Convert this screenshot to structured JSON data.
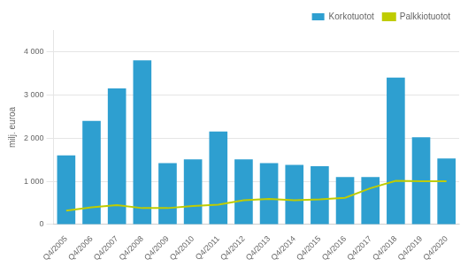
{
  "chart_data": {
    "type": "bar",
    "ylabel": "milj. euroa",
    "categories": [
      "Q4/2005",
      "Q4/2006",
      "Q4/2007",
      "Q4/2008",
      "Q4/2009",
      "Q4/2010",
      "Q4/2011",
      "Q4/2012",
      "Q4/2013",
      "Q4/2014",
      "Q4/2015",
      "Q4/2016",
      "Q4/2017",
      "Q4/2018",
      "Q4/2019",
      "Q4/2020"
    ],
    "series": [
      {
        "name": "Korkotuotot",
        "type": "bar",
        "color": "#2E9FD0",
        "values": [
          1600,
          2400,
          3150,
          3800,
          1420,
          1510,
          2150,
          1510,
          1420,
          1380,
          1350,
          1100,
          1100,
          3400,
          2020,
          1530
        ]
      },
      {
        "name": "Palkkiotuotot",
        "type": "line",
        "color": "#BFCC00",
        "values": [
          320,
          400,
          450,
          380,
          380,
          430,
          460,
          560,
          590,
          560,
          580,
          620,
          840,
          1010,
          1000,
          1000
        ]
      }
    ],
    "ylim": [
      0,
      4500
    ],
    "yticks": [
      0,
      {
        "value": 1000,
        "label": "1 000"
      },
      {
        "value": 2000,
        "label": "2 000"
      },
      {
        "value": 3000,
        "label": "3 000"
      },
      {
        "value": 4000,
        "label": "4 000"
      }
    ],
    "grid": true,
    "legend": "upper right"
  }
}
